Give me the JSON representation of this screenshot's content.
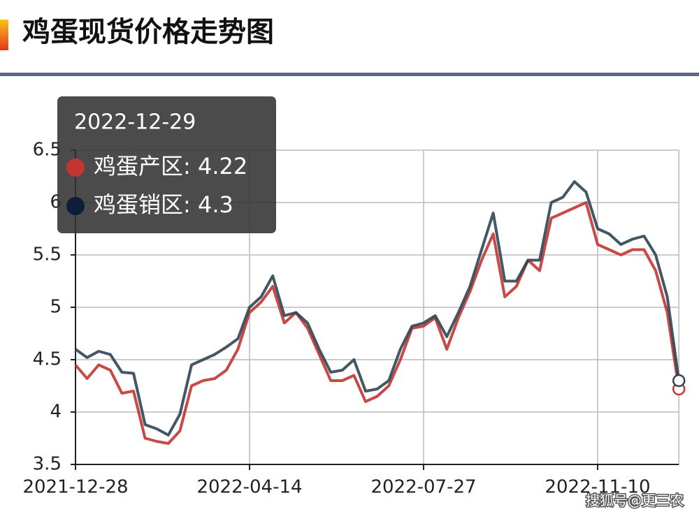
{
  "chart_data": {
    "type": "line",
    "title": "鸡蛋现货价格走势图",
    "watermark": "搜狐号@更三农",
    "categories": [
      "2021-12-28",
      null,
      null,
      null,
      null,
      null,
      null,
      null,
      null,
      null,
      null,
      null,
      null,
      null,
      null,
      "2022-04-14",
      null,
      null,
      null,
      null,
      null,
      null,
      null,
      null,
      null,
      null,
      null,
      null,
      null,
      null,
      "2022-07-27",
      null,
      null,
      null,
      null,
      null,
      null,
      null,
      null,
      null,
      null,
      null,
      null,
      null,
      null,
      "2022-11-10",
      null,
      null,
      null,
      null,
      null,
      null,
      null
    ],
    "series": [
      {
        "color": "#c23531",
        "values": [
          4.45,
          4.32,
          4.45,
          4.4,
          4.18,
          4.2,
          3.75,
          3.72,
          3.7,
          3.82,
          4.25,
          4.3,
          4.32,
          4.4,
          4.6,
          4.95,
          5.05,
          5.2,
          4.85,
          4.95,
          4.8,
          4.55,
          4.3,
          4.3,
          4.35,
          4.1,
          4.15,
          4.25,
          4.5,
          4.8,
          4.82,
          4.9,
          4.6,
          4.9,
          5.15,
          5.45,
          5.7,
          5.1,
          5.2,
          5.45,
          5.35,
          5.85,
          5.9,
          5.95,
          6.0,
          5.6,
          5.55,
          5.5,
          5.55,
          5.55,
          5.35,
          4.95,
          4.22
        ]
      },
      {
        "color": "#2f4554",
        "values": [
          4.6,
          4.52,
          4.58,
          4.55,
          4.38,
          4.37,
          3.88,
          3.84,
          3.78,
          3.98,
          4.45,
          4.5,
          4.55,
          4.62,
          4.7,
          5.0,
          5.1,
          5.3,
          4.92,
          4.95,
          4.85,
          4.6,
          4.38,
          4.4,
          4.5,
          4.2,
          4.22,
          4.3,
          4.6,
          4.82,
          4.85,
          4.92,
          4.72,
          4.95,
          5.2,
          5.55,
          5.9,
          5.25,
          5.25,
          5.45,
          5.45,
          6.0,
          6.05,
          6.2,
          6.1,
          5.75,
          5.7,
          5.6,
          5.65,
          5.68,
          5.5,
          5.1,
          4.3
        ]
      }
    ],
    "ylim": [
      3.5,
      6.5
    ],
    "yticks": [
      3.5,
      4,
      4.5,
      5,
      5.5,
      6,
      6.5
    ],
    "grid": true,
    "tooltip": {
      "title": "2022-12-29",
      "items": [
        {
          "color": "#c23531",
          "label": "鸡蛋产区: 4.22"
        },
        {
          "color": "#0f1e38",
          "label": "鸡蛋销区: 4.3"
        }
      ]
    }
  }
}
